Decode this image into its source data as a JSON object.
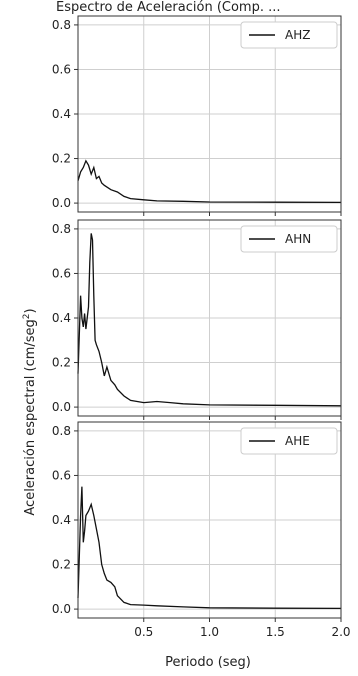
{
  "chart_data": {
    "type": "line",
    "title_partial": "Espectro de Aceleración (Comp. ...",
    "xlabel": "Periodo (seg)",
    "ylabel": "Aceleración espectral (cm/seg",
    "ylabel_sup": "2",
    "ylabel_close": ")",
    "xlim": [
      0.0,
      2.0
    ],
    "ylim": [
      -0.04,
      0.84
    ],
    "x_ticks": [
      0.5,
      1.0,
      1.5,
      2.0
    ],
    "x_tick_labels": [
      "0.5",
      "1.0",
      "1.5",
      "2.0"
    ],
    "y_ticks": [
      0.0,
      0.2,
      0.4,
      0.6,
      0.8
    ],
    "y_tick_labels": [
      "0.0",
      "0.2",
      "0.4",
      "0.6",
      "0.8"
    ],
    "grid": true,
    "legend_position": "top-right",
    "line_color": "#111111",
    "panels": [
      {
        "name": "AHZ",
        "x": [
          0.0,
          0.02,
          0.04,
          0.06,
          0.08,
          0.1,
          0.12,
          0.14,
          0.16,
          0.18,
          0.2,
          0.25,
          0.3,
          0.35,
          0.4,
          0.5,
          0.6,
          0.8,
          1.0,
          1.5,
          2.0
        ],
        "y": [
          0.1,
          0.14,
          0.16,
          0.19,
          0.17,
          0.13,
          0.16,
          0.11,
          0.12,
          0.09,
          0.08,
          0.06,
          0.05,
          0.03,
          0.02,
          0.015,
          0.01,
          0.008,
          0.005,
          0.004,
          0.003
        ]
      },
      {
        "name": "AHN",
        "x": [
          0.0,
          0.02,
          0.03,
          0.04,
          0.05,
          0.06,
          0.07,
          0.08,
          0.09,
          0.1,
          0.11,
          0.12,
          0.13,
          0.14,
          0.16,
          0.18,
          0.2,
          0.22,
          0.25,
          0.28,
          0.3,
          0.35,
          0.4,
          0.5,
          0.6,
          0.7,
          0.8,
          1.0,
          1.5,
          2.0
        ],
        "y": [
          0.15,
          0.5,
          0.4,
          0.36,
          0.42,
          0.35,
          0.4,
          0.45,
          0.65,
          0.78,
          0.75,
          0.5,
          0.3,
          0.28,
          0.25,
          0.2,
          0.14,
          0.18,
          0.12,
          0.1,
          0.08,
          0.05,
          0.03,
          0.02,
          0.025,
          0.02,
          0.015,
          0.01,
          0.008,
          0.006
        ]
      },
      {
        "name": "AHE",
        "x": [
          0.0,
          0.02,
          0.03,
          0.04,
          0.05,
          0.06,
          0.08,
          0.1,
          0.12,
          0.14,
          0.16,
          0.18,
          0.2,
          0.22,
          0.25,
          0.28,
          0.3,
          0.35,
          0.4,
          0.5,
          0.6,
          0.8,
          1.0,
          1.5,
          2.0
        ],
        "y": [
          0.05,
          0.42,
          0.55,
          0.3,
          0.35,
          0.42,
          0.44,
          0.47,
          0.42,
          0.36,
          0.3,
          0.2,
          0.16,
          0.13,
          0.12,
          0.1,
          0.06,
          0.03,
          0.02,
          0.018,
          0.015,
          0.01,
          0.006,
          0.004,
          0.003
        ]
      }
    ]
  }
}
